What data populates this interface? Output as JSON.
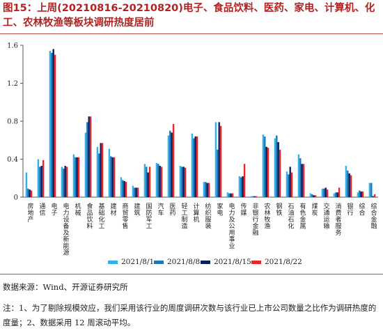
{
  "title": "图15：上周(20210816-20210820)电子、食品饮料、医药、家电、计算机、化工、农林牧渔等板块调研热度居前",
  "source": "数据来源：Wind、开源证券研究所",
  "note": "注：1、为了剔除规模效应，我们采用该行业的周度调研次数与该行业已上市公司数量之比作为调研热度的度量；2、数据采用 12 周滚动平均。",
  "chart_data": {
    "type": "bar",
    "title": "图15：上周(20210816-20210820)电子、食品饮料、医药、家电、计算机、化工、农林牧渔等板块调研热度居前",
    "xlabel": "",
    "ylabel": "",
    "ylim": [
      0,
      1.6
    ],
    "yticks": [
      "0",
      "0.4",
      "0.8",
      "1.2",
      "1.6"
    ],
    "grid": false,
    "legend_position": "bottom",
    "categories": [
      "房地产",
      "通信",
      "电子",
      "电力设备及新能源",
      "机械",
      "食品饮料",
      "基础化工",
      "建材",
      "商贸零售",
      "建筑",
      "国防军工",
      "汽车",
      "医药",
      "轻工制造",
      "计算机",
      "纺织服装",
      "家电",
      "电力及公用事业",
      "传媒",
      "非银行金融",
      "农林牧渔",
      "钢铁",
      "石油石化",
      "有色金属",
      "煤炭",
      "交通运输",
      "消费者服务",
      "银行",
      "综合",
      "综合金融"
    ],
    "series": [
      {
        "name": "2021/8/1",
        "color": "#33b0ea",
        "values": [
          0.26,
          0.4,
          1.54,
          0.32,
          0.45,
          0.68,
          0.53,
          0.51,
          0.21,
          0.12,
          0.35,
          0.36,
          0.65,
          0.33,
          0.67,
          0.16,
          0.79,
          0.05,
          0.22,
          0.01,
          0.66,
          0.62,
          0.27,
          0.45,
          0.04,
          0.09,
          0.04,
          0.33,
          0.05,
          0.15
        ]
      },
      {
        "name": "2021/8/8",
        "color": "#1f77b4",
        "values": [
          0.09,
          0.32,
          1.52,
          0.3,
          0.42,
          0.79,
          0.46,
          0.43,
          0.18,
          0.1,
          0.32,
          0.35,
          0.7,
          0.32,
          0.62,
          0.16,
          0.5,
          0.04,
          0.21,
          0.01,
          0.64,
          0.65,
          0.24,
          0.41,
          0.03,
          0.09,
          0.05,
          0.28,
          0.07,
          0.15
        ]
      },
      {
        "name": "2021/8/15",
        "color": "#0b1f5e",
        "values": [
          0.08,
          0.33,
          1.56,
          0.33,
          0.42,
          0.85,
          0.57,
          0.42,
          0.17,
          0.1,
          0.26,
          0.33,
          0.68,
          0.32,
          0.64,
          0.15,
          0.79,
          0.04,
          0.22,
          0.01,
          0.53,
          0.58,
          0.32,
          0.35,
          0.02,
          0.1,
          0.05,
          0.25,
          0.06,
          0.01
        ]
      },
      {
        "name": "2021/8/22",
        "color": "#e8262a",
        "values": [
          0.07,
          0.39,
          1.5,
          0.32,
          0.42,
          0.85,
          0.57,
          0.42,
          0.16,
          0.1,
          0.32,
          0.32,
          0.77,
          0.31,
          0.64,
          0.15,
          0.75,
          0.04,
          0.35,
          0.01,
          0.52,
          0.5,
          0.26,
          0.35,
          0.02,
          0.08,
          0.1,
          0.23,
          0.06,
          0.03
        ]
      }
    ]
  }
}
